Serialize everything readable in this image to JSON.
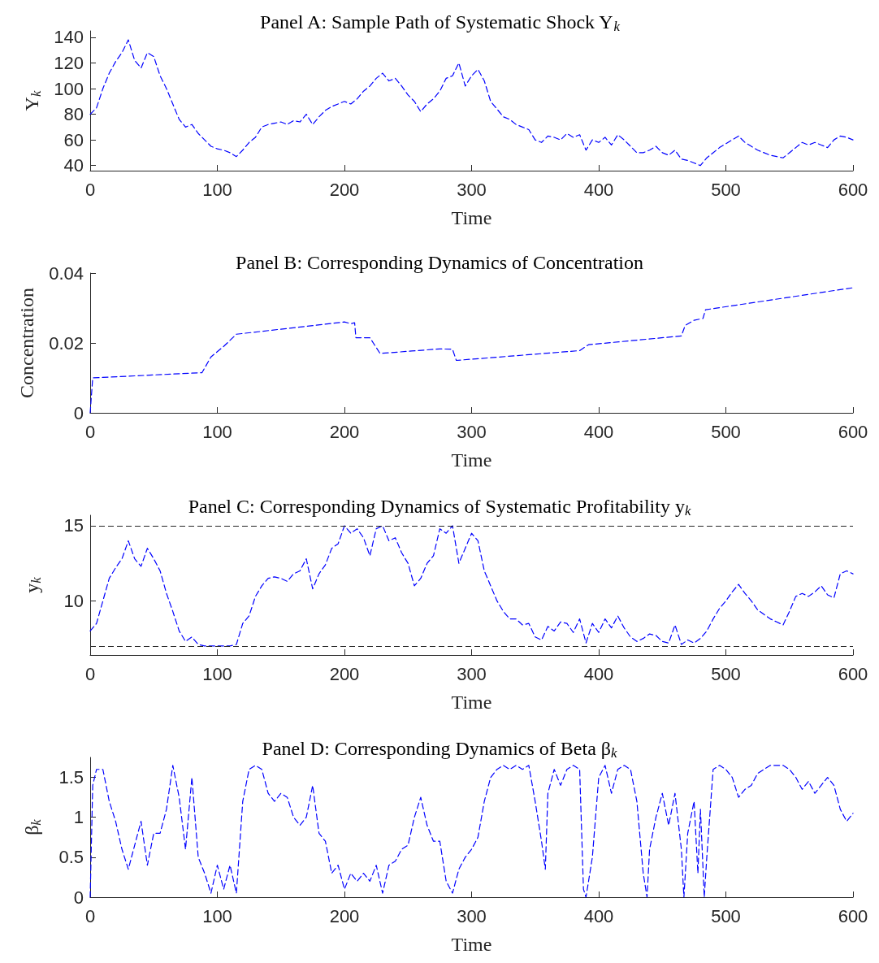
{
  "chart_data": [
    {
      "type": "line",
      "title": "Panel A: Sample Path of Systematic Shock Y$_{k}$",
      "xlabel": "Time",
      "ylabel": "Y$_{k}$",
      "xlim": [
        0,
        600
      ],
      "xticks": [
        0,
        100,
        200,
        300,
        400,
        500,
        600
      ],
      "ylim": [
        36,
        145
      ],
      "yticks": [
        40,
        60,
        80,
        100,
        120,
        140
      ],
      "grid": false,
      "line_style": "dashed",
      "marker": "none",
      "series": [
        {
          "color": "#0000ff",
          "x": [
            0,
            5,
            10,
            15,
            20,
            25,
            30,
            35,
            40,
            45,
            50,
            55,
            60,
            65,
            70,
            75,
            80,
            85,
            90,
            95,
            100,
            105,
            110,
            115,
            120,
            125,
            130,
            135,
            140,
            145,
            150,
            155,
            160,
            165,
            170,
            175,
            180,
            185,
            190,
            195,
            200,
            205,
            210,
            215,
            220,
            225,
            230,
            235,
            240,
            245,
            250,
            255,
            260,
            265,
            270,
            275,
            280,
            285,
            290,
            295,
            300,
            305,
            310,
            315,
            320,
            325,
            330,
            335,
            340,
            345,
            350,
            355,
            360,
            365,
            370,
            375,
            380,
            385,
            390,
            395,
            400,
            405,
            410,
            415,
            420,
            425,
            430,
            435,
            440,
            445,
            450,
            455,
            460,
            465,
            470,
            475,
            480,
            485,
            490,
            495,
            500,
            505,
            510,
            515,
            520,
            525,
            530,
            535,
            540,
            545,
            550,
            555,
            560,
            565,
            570,
            575,
            580,
            585,
            590,
            595,
            600
          ],
          "values": [
            80,
            85,
            100,
            112,
            121,
            128,
            138,
            122,
            116,
            128,
            125,
            110,
            100,
            88,
            76,
            70,
            72,
            65,
            60,
            55,
            53,
            52,
            50,
            47,
            52,
            58,
            62,
            70,
            72,
            73,
            74,
            72,
            75,
            74,
            80,
            72,
            78,
            83,
            86,
            88,
            90,
            88,
            92,
            98,
            102,
            108,
            112,
            106,
            108,
            102,
            95,
            90,
            82,
            88,
            92,
            98,
            108,
            110,
            120,
            102,
            110,
            115,
            106,
            90,
            84,
            78,
            76,
            72,
            70,
            68,
            60,
            58,
            63,
            62,
            60,
            65,
            62,
            64,
            52,
            60,
            58,
            62,
            56,
            64,
            60,
            55,
            50,
            50,
            52,
            55,
            50,
            48,
            52,
            45,
            44,
            42,
            40,
            46,
            50,
            54,
            57,
            60,
            63,
            58,
            55,
            52,
            50,
            48,
            47,
            46,
            50,
            54,
            58,
            56,
            58,
            56,
            54,
            60,
            63,
            62,
            60
          ]
        }
      ]
    },
    {
      "type": "line",
      "title": "Panel B: Corresponding Dynamics of Concentration",
      "xlabel": "Time",
      "ylabel": "Concentration",
      "xlim": [
        0,
        600
      ],
      "xticks": [
        0,
        100,
        200,
        300,
        400,
        500,
        600
      ],
      "ylim": [
        0,
        0.04
      ],
      "yticks": [
        0,
        0.02,
        0.04
      ],
      "grid": false,
      "line_style": "dashed",
      "marker": "none",
      "series": [
        {
          "color": "#0000ff",
          "x": [
            0,
            2,
            88,
            95,
            105,
            115,
            200,
            205,
            208,
            209,
            220,
            228,
            275,
            285,
            288,
            385,
            392,
            465,
            468,
            475,
            482,
            484,
            600
          ],
          "values": [
            0,
            0.01,
            0.0115,
            0.016,
            0.019,
            0.0225,
            0.026,
            0.0255,
            0.0258,
            0.0215,
            0.0215,
            0.017,
            0.0183,
            0.0182,
            0.015,
            0.0178,
            0.0195,
            0.022,
            0.025,
            0.0265,
            0.027,
            0.0295,
            0.0358
          ]
        }
      ]
    },
    {
      "type": "line",
      "title": "Panel C: Corresponding Dynamics of Systematic Profitability y$_{k}$",
      "xlabel": "Time",
      "ylabel": "y$_{k}$",
      "xlim": [
        0,
        600
      ],
      "xticks": [
        0,
        100,
        200,
        300,
        400,
        500,
        600
      ],
      "ylim": [
        6.4,
        15.7
      ],
      "yticks": [
        10,
        15
      ],
      "grid": false,
      "line_style": "dashed",
      "marker": "none",
      "ref_lines": [
        {
          "axis": "y",
          "value": 15,
          "color": "#262626",
          "line_style": "dashed"
        },
        {
          "axis": "y",
          "value": 7,
          "color": "#262626",
          "line_style": "dashed"
        }
      ],
      "series": [
        {
          "color": "#0000ff",
          "x": [
            0,
            5,
            10,
            15,
            20,
            25,
            30,
            35,
            40,
            45,
            50,
            55,
            60,
            65,
            70,
            75,
            80,
            85,
            90,
            95,
            100,
            105,
            110,
            115,
            120,
            125,
            130,
            135,
            140,
            145,
            150,
            155,
            160,
            165,
            170,
            175,
            180,
            185,
            190,
            195,
            200,
            205,
            210,
            215,
            220,
            225,
            230,
            235,
            240,
            245,
            250,
            255,
            260,
            265,
            270,
            275,
            280,
            285,
            290,
            295,
            300,
            305,
            310,
            315,
            320,
            325,
            330,
            335,
            340,
            345,
            350,
            355,
            360,
            365,
            370,
            375,
            380,
            385,
            390,
            395,
            400,
            405,
            410,
            415,
            420,
            425,
            430,
            435,
            440,
            445,
            450,
            455,
            460,
            465,
            470,
            475,
            480,
            485,
            490,
            495,
            500,
            505,
            510,
            515,
            520,
            525,
            530,
            535,
            540,
            545,
            550,
            555,
            560,
            565,
            570,
            575,
            580,
            585,
            590,
            595,
            600
          ],
          "values": [
            8,
            8.5,
            10,
            11.5,
            12.2,
            12.8,
            14,
            12.8,
            12.3,
            13.5,
            12.8,
            12,
            10.5,
            9.3,
            8,
            7.3,
            7.6,
            7.1,
            7,
            7,
            7,
            7,
            7,
            7.1,
            8.5,
            9,
            10.3,
            11,
            11.5,
            11.6,
            11.5,
            11.3,
            11.8,
            12,
            12.8,
            10.8,
            11.8,
            12.4,
            13.5,
            13.8,
            15,
            14.5,
            14.8,
            14.2,
            13,
            14.8,
            15,
            14,
            14.2,
            13.2,
            12.5,
            11,
            11.5,
            12.5,
            13,
            14.8,
            14.5,
            15,
            12.5,
            13.5,
            14.5,
            14,
            12,
            11,
            10,
            9.3,
            8.8,
            8.8,
            8.4,
            8.5,
            7.6,
            7.4,
            8.3,
            8,
            8.6,
            8.5,
            7.9,
            8.8,
            7.2,
            8.5,
            7.9,
            8.8,
            8.2,
            9,
            8.2,
            7.6,
            7.3,
            7.5,
            7.8,
            7.7,
            7.3,
            7.2,
            8.4,
            7.1,
            7.4,
            7.2,
            7.5,
            8,
            8.8,
            9.5,
            10,
            10.6,
            11.1,
            10.5,
            10,
            9.4,
            9.1,
            8.8,
            8.6,
            8.4,
            9.3,
            10.3,
            10.5,
            10.3,
            10.6,
            11,
            10.4,
            10.2,
            11.8,
            12,
            11.8
          ]
        }
      ]
    },
    {
      "type": "line",
      "title": "Panel D: Corresponding Dynamics of Beta β$_{k}$",
      "xlabel": "Time",
      "ylabel": "β$_{k}$",
      "xlim": [
        0,
        600
      ],
      "xticks": [
        0,
        100,
        200,
        300,
        400,
        500,
        600
      ],
      "ylim": [
        0,
        1.75
      ],
      "yticks": [
        0,
        0.5,
        1,
        1.5
      ],
      "grid": false,
      "line_style": "dashed",
      "marker": "none",
      "series": [
        {
          "color": "#0000ff",
          "x": [
            0,
            2,
            5,
            10,
            15,
            20,
            25,
            30,
            35,
            40,
            45,
            50,
            55,
            60,
            65,
            70,
            75,
            80,
            85,
            90,
            95,
            100,
            105,
            110,
            115,
            120,
            125,
            130,
            135,
            140,
            145,
            150,
            155,
            160,
            165,
            170,
            175,
            180,
            185,
            190,
            195,
            200,
            205,
            210,
            215,
            220,
            225,
            230,
            235,
            240,
            245,
            250,
            255,
            260,
            265,
            270,
            275,
            280,
            285,
            290,
            295,
            300,
            305,
            310,
            315,
            320,
            325,
            330,
            335,
            340,
            345,
            350,
            355,
            358,
            360,
            365,
            370,
            375,
            380,
            385,
            388,
            390,
            395,
            400,
            405,
            410,
            415,
            420,
            425,
            430,
            435,
            438,
            440,
            445,
            450,
            455,
            460,
            465,
            467,
            470,
            475,
            478,
            480,
            483,
            485,
            490,
            495,
            500,
            505,
            510,
            515,
            520,
            525,
            530,
            535,
            540,
            545,
            550,
            555,
            560,
            565,
            570,
            575,
            580,
            585,
            590,
            595,
            600
          ],
          "values": [
            0,
            1.4,
            1.6,
            1.6,
            1.2,
            0.95,
            0.6,
            0.35,
            0.65,
            0.95,
            0.4,
            0.8,
            0.8,
            1.1,
            1.65,
            1.25,
            0.6,
            1.5,
            0.5,
            0.3,
            0.05,
            0.4,
            0.1,
            0.4,
            0.05,
            1.2,
            1.6,
            1.65,
            1.6,
            1.3,
            1.2,
            1.3,
            1.25,
            1,
            0.9,
            1,
            1.4,
            0.8,
            0.7,
            0.3,
            0.4,
            0.1,
            0.3,
            0.2,
            0.3,
            0.2,
            0.4,
            0.05,
            0.4,
            0.45,
            0.6,
            0.65,
            1,
            1.25,
            0.9,
            0.7,
            0.7,
            0.2,
            0.05,
            0.35,
            0.5,
            0.6,
            0.75,
            1.2,
            1.5,
            1.6,
            1.65,
            1.6,
            1.65,
            1.6,
            1.65,
            1.2,
            0.7,
            0.35,
            1.3,
            1.6,
            1.4,
            1.6,
            1.65,
            1.6,
            0.1,
            0,
            0.5,
            1.5,
            1.65,
            1.3,
            1.6,
            1.65,
            1.6,
            1.2,
            0.3,
            0,
            0.6,
            1,
            1.3,
            0.9,
            1.3,
            0.6,
            0,
            0.8,
            1.2,
            0.3,
            1.1,
            0,
            0.5,
            1.6,
            1.65,
            1.6,
            1.5,
            1.25,
            1.35,
            1.4,
            1.55,
            1.6,
            1.65,
            1.65,
            1.65,
            1.6,
            1.5,
            1.35,
            1.45,
            1.3,
            1.4,
            1.5,
            1.4,
            1.1,
            0.95,
            1.05
          ]
        }
      ]
    }
  ]
}
